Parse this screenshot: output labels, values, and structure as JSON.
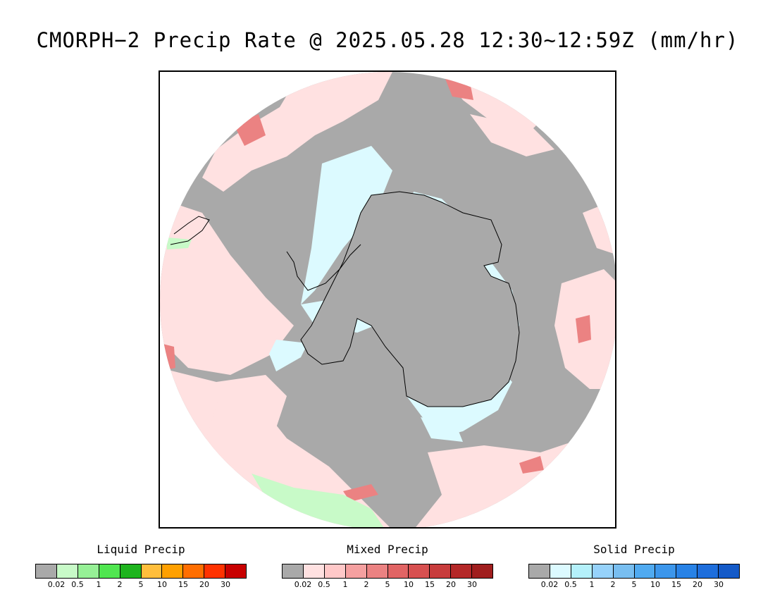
{
  "title": "CMORPH−2 Precip Rate @ 2025.05.28 12:30~12:59Z (mm/hr)",
  "map": {
    "background_color": "#a9a9a9",
    "icons": [
      "antarctica-coastline-icon",
      "south-america-coastline-icon"
    ]
  },
  "legends": [
    {
      "title": "Liquid Precip",
      "colors": [
        "#a9a9a9",
        "#c8fac8",
        "#96f096",
        "#50e650",
        "#1eb41e",
        "#ffbe3c",
        "#ffa000",
        "#ff6e00",
        "#ff3200",
        "#c80000"
      ],
      "ticks": [
        "0.02",
        "0.5",
        "1",
        "2",
        "5",
        "10",
        "15",
        "20",
        "30"
      ]
    },
    {
      "title": "Mixed Precip",
      "colors": [
        "#a9a9a9",
        "#ffe1e1",
        "#ffc8c8",
        "#f5a0a0",
        "#eb8282",
        "#e16464",
        "#d75050",
        "#c83c3c",
        "#b42828",
        "#a01e1e"
      ],
      "ticks": [
        "0.02",
        "0.5",
        "1",
        "2",
        "5",
        "10",
        "15",
        "20",
        "30"
      ]
    },
    {
      "title": "Solid Precip",
      "colors": [
        "#a9a9a9",
        "#dcfaff",
        "#b4f0fa",
        "#96d2fa",
        "#78bef0",
        "#50aaf0",
        "#3c96eb",
        "#2882e6",
        "#1e6edc",
        "#145ac8"
      ],
      "ticks": [
        "0.02",
        "0.5",
        "1",
        "2",
        "5",
        "10",
        "15",
        "20",
        "30"
      ]
    }
  ]
}
